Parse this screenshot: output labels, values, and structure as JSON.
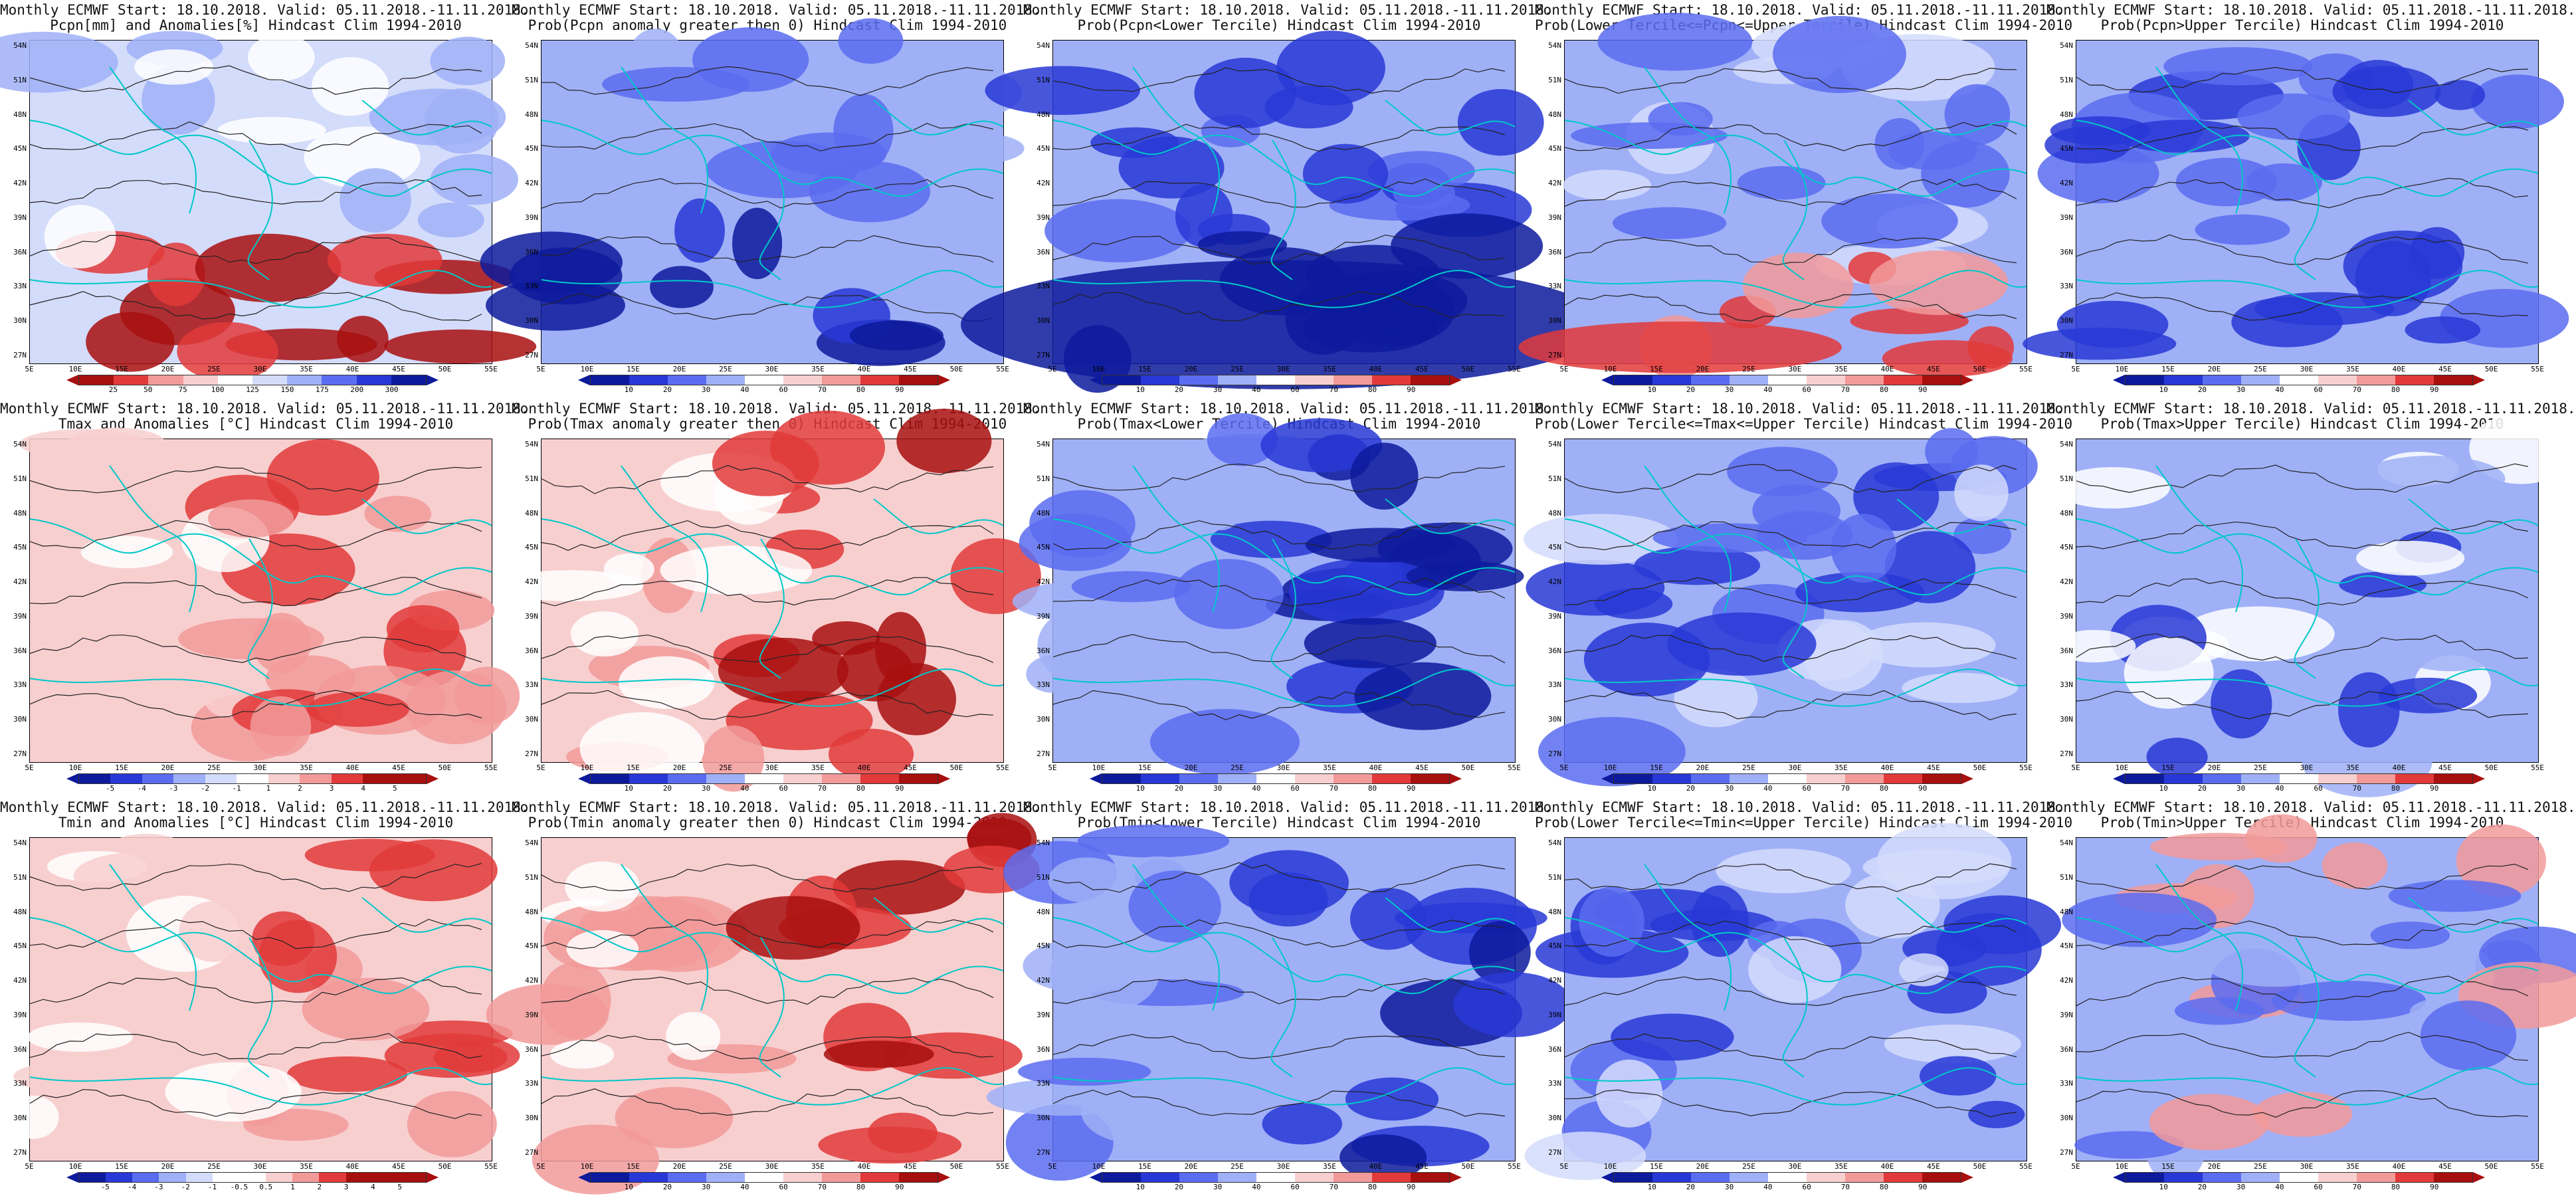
{
  "map_extent": {
    "lat_labels": [
      "54N",
      "51N",
      "48N",
      "45N",
      "42N",
      "39N",
      "36N",
      "33N",
      "30N",
      "27N"
    ],
    "lon_labels": [
      "5E",
      "10E",
      "15E",
      "20E",
      "25E",
      "30E",
      "35E",
      "40E",
      "45E",
      "50E",
      "55E"
    ]
  },
  "colors": {
    "deep_blue": "#0d1a9c",
    "blue": "#2838d6",
    "mid_blue": "#5a6cf0",
    "light_blue": "#9fb0f7",
    "pale_blue": "#d4dcfb",
    "white": "#ffffff",
    "pale_red": "#f8cfcf",
    "light_red": "#f29a9a",
    "red": "#e23a3a",
    "dark_red": "#a80f0f",
    "coast": "#00c8c8",
    "contour": "#222222"
  },
  "colorbars": {
    "pcpn_anom": {
      "labels": [
        "25",
        "50",
        "75",
        "100",
        "125",
        "150",
        "175",
        "200",
        "300"
      ]
    },
    "prob": {
      "labels": [
        "10",
        "20",
        "30",
        "40",
        "60",
        "70",
        "80",
        "90"
      ]
    },
    "tmax_anom": {
      "labels": [
        "-5",
        "-4",
        "-3",
        "-2",
        "-1",
        "1",
        "2",
        "3",
        "4",
        "5"
      ]
    },
    "tmin_anom": {
      "labels": [
        "-5",
        "-4",
        "-3",
        "-2",
        "-1",
        "-0.5",
        "0.5",
        "1",
        "2",
        "3",
        "4",
        "5"
      ]
    }
  },
  "panels": [
    {
      "title1": "Monthly ECMWF Start: 18.10.2018. Valid: 05.11.2018.-11.11.2018.",
      "title2": "Pcpn[mm] and Anomalies[%] Hindcast Clim 1994-2010",
      "cbar": "pcpn_anom",
      "scheme": "pcpn"
    },
    {
      "title1": "Monthly ECMWF Start: 18.10.2018. Valid: 05.11.2018.-11.11.2018.",
      "title2": "Prob(Pcpn anomaly greater then 0) Hindcast Clim 1994-2010",
      "cbar": "prob",
      "scheme": "blue_south"
    },
    {
      "title1": "Monthly ECMWF Start: 18.10.2018. Valid: 05.11.2018.-11.11.2018.",
      "title2": "Prob(Pcpn<Lower Tercile) Hindcast Clim 1994-2010",
      "cbar": "prob",
      "scheme": "blue_deep_south"
    },
    {
      "title1": "Monthly ECMWF Start: 18.10.2018. Valid: 05.11.2018.-11.11.2018.",
      "title2": "Prob(Lower Tercile<=Pcpn<=Upper Tercile) Hindcast Clim 1994-2010",
      "cbar": "prob",
      "scheme": "blue_red_south"
    },
    {
      "title1": "Monthly ECMWF Start: 18.10.2018. Valid: 05.11.2018.-11.11.2018.",
      "title2": "Prob(Pcpn>Upper Tercile) Hindcast Clim 1994-2010",
      "cbar": "prob",
      "scheme": "blue"
    },
    {
      "title1": "Monthly ECMWF Start: 18.10.2018. Valid: 05.11.2018.-11.11.2018.",
      "title2": "Tmax and Anomalies [°C] Hindcast Clim 1994-2010",
      "cbar": "tmax_anom",
      "scheme": "red_east"
    },
    {
      "title1": "Monthly ECMWF Start: 18.10.2018. Valid: 05.11.2018.-11.11.2018.",
      "title2": "Prob(Tmax anomaly greater then 0) Hindcast Clim 1994-2010",
      "cbar": "prob",
      "scheme": "red_east_strong"
    },
    {
      "title1": "Monthly ECMWF Start: 18.10.2018. Valid: 05.11.2018.-11.11.2018.",
      "title2": "Prob(Tmax<Lower Tercile) Hindcast Clim 1994-2010",
      "cbar": "prob",
      "scheme": "blue_east_deep"
    },
    {
      "title1": "Monthly ECMWF Start: 18.10.2018. Valid: 05.11.2018.-11.11.2018.",
      "title2": "Prob(Lower Tercile<=Tmax<=Upper Tercile) Hindcast Clim 1994-2010",
      "cbar": "prob",
      "scheme": "blue_mix"
    },
    {
      "title1": "Monthly ECMWF Start: 18.10.2018. Valid: 05.11.2018.-11.11.2018.",
      "title2": "Prob(Tmax>Upper Tercile) Hindcast Clim 1994-2010",
      "cbar": "prob",
      "scheme": "blue_pale"
    },
    {
      "title1": "Monthly ECMWF Start: 18.10.2018. Valid: 05.11.2018.-11.11.2018.",
      "title2": "Tmin and Anomalies [°C] Hindcast Clim 1994-2010",
      "cbar": "tmin_anom",
      "scheme": "red_east"
    },
    {
      "title1": "Monthly ECMWF Start: 18.10.2018. Valid: 05.11.2018.-11.11.2018.",
      "title2": "Prob(Tmin anomaly greater then 0) Hindcast Clim 1994-2010",
      "cbar": "prob",
      "scheme": "red_east_strong"
    },
    {
      "title1": "Monthly ECMWF Start: 18.10.2018. Valid: 05.11.2018.-11.11.2018.",
      "title2": "Prob(Tmin<Lower Tercile) Hindcast Clim 1994-2010",
      "cbar": "prob",
      "scheme": "blue_east_deep"
    },
    {
      "title1": "Monthly ECMWF Start: 18.10.2018. Valid: 05.11.2018.-11.11.2018.",
      "title2": "Prob(Lower Tercile<=Tmin<=Upper Tercile) Hindcast Clim 1994-2010",
      "cbar": "prob",
      "scheme": "blue_mix"
    },
    {
      "title1": "Monthly ECMWF Start: 18.10.2018. Valid: 05.11.2018.-11.11.2018.",
      "title2": "Prob(Tmin>Upper Tercile) Hindcast Clim 1994-2010",
      "cbar": "prob",
      "scheme": "blue_red_mix"
    }
  ]
}
